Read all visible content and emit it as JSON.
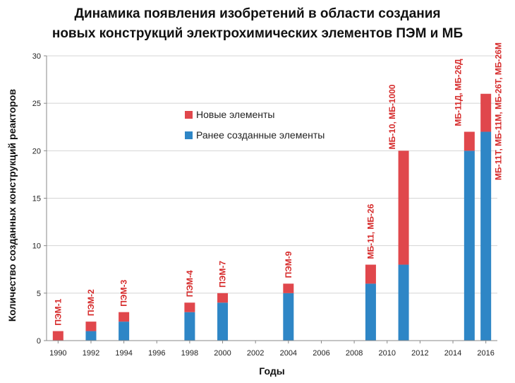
{
  "chart_data": {
    "type": "bar",
    "stacked": true,
    "title_line1": "Динамика появления изобретений в области создания",
    "title_line2": "новых конструкций электрохимических элементов ПЭМ и МБ",
    "xlabel": "Годы",
    "ylabel": "Количество созданных конструкций реакторов",
    "ylim": [
      0,
      30
    ],
    "yticks": [
      0,
      5,
      10,
      15,
      20,
      25,
      30
    ],
    "xlim": [
      1989.3,
      2016.7
    ],
    "xticks": [
      1990,
      1992,
      1994,
      1996,
      1998,
      2000,
      2002,
      2004,
      2006,
      2008,
      2010,
      2012,
      2014,
      2016
    ],
    "grid": "horizontal",
    "legend_position": "upper-center",
    "series": [
      {
        "name": "Новые элементы",
        "color": "#e0474c"
      },
      {
        "name": "Ранее созданные элементы",
        "color": "#2e86c6"
      }
    ],
    "bars": [
      {
        "year": 1990,
        "previous": 0,
        "new": 1,
        "label": "ПЭМ-1"
      },
      {
        "year": 1992,
        "previous": 1,
        "new": 1,
        "label": "ПЭМ-2"
      },
      {
        "year": 1994,
        "previous": 2,
        "new": 1,
        "label": "ПЭМ-3"
      },
      {
        "year": 1998,
        "previous": 3,
        "new": 1,
        "label": "ПЭМ-4"
      },
      {
        "year": 2000,
        "previous": 4,
        "new": 1,
        "label": "ПЭМ-7"
      },
      {
        "year": 2004,
        "previous": 5,
        "new": 1,
        "label": "ПЭМ-9"
      },
      {
        "year": 2009,
        "previous": 6,
        "new": 2,
        "label": "МБ-11, МБ-26"
      },
      {
        "year": 2011,
        "previous": 8,
        "new": 12,
        "label": "МБ-10, МБ-1000"
      },
      {
        "year": 2015,
        "previous": 20,
        "new": 2,
        "label": "МБ-11Д, МБ-26Д"
      },
      {
        "year": 2016,
        "previous": 22,
        "new": 4,
        "label": "МБ-11Т, МБ-11М, МБ-26Т, МБ-26М"
      }
    ],
    "label_color": "#d62b2b"
  }
}
